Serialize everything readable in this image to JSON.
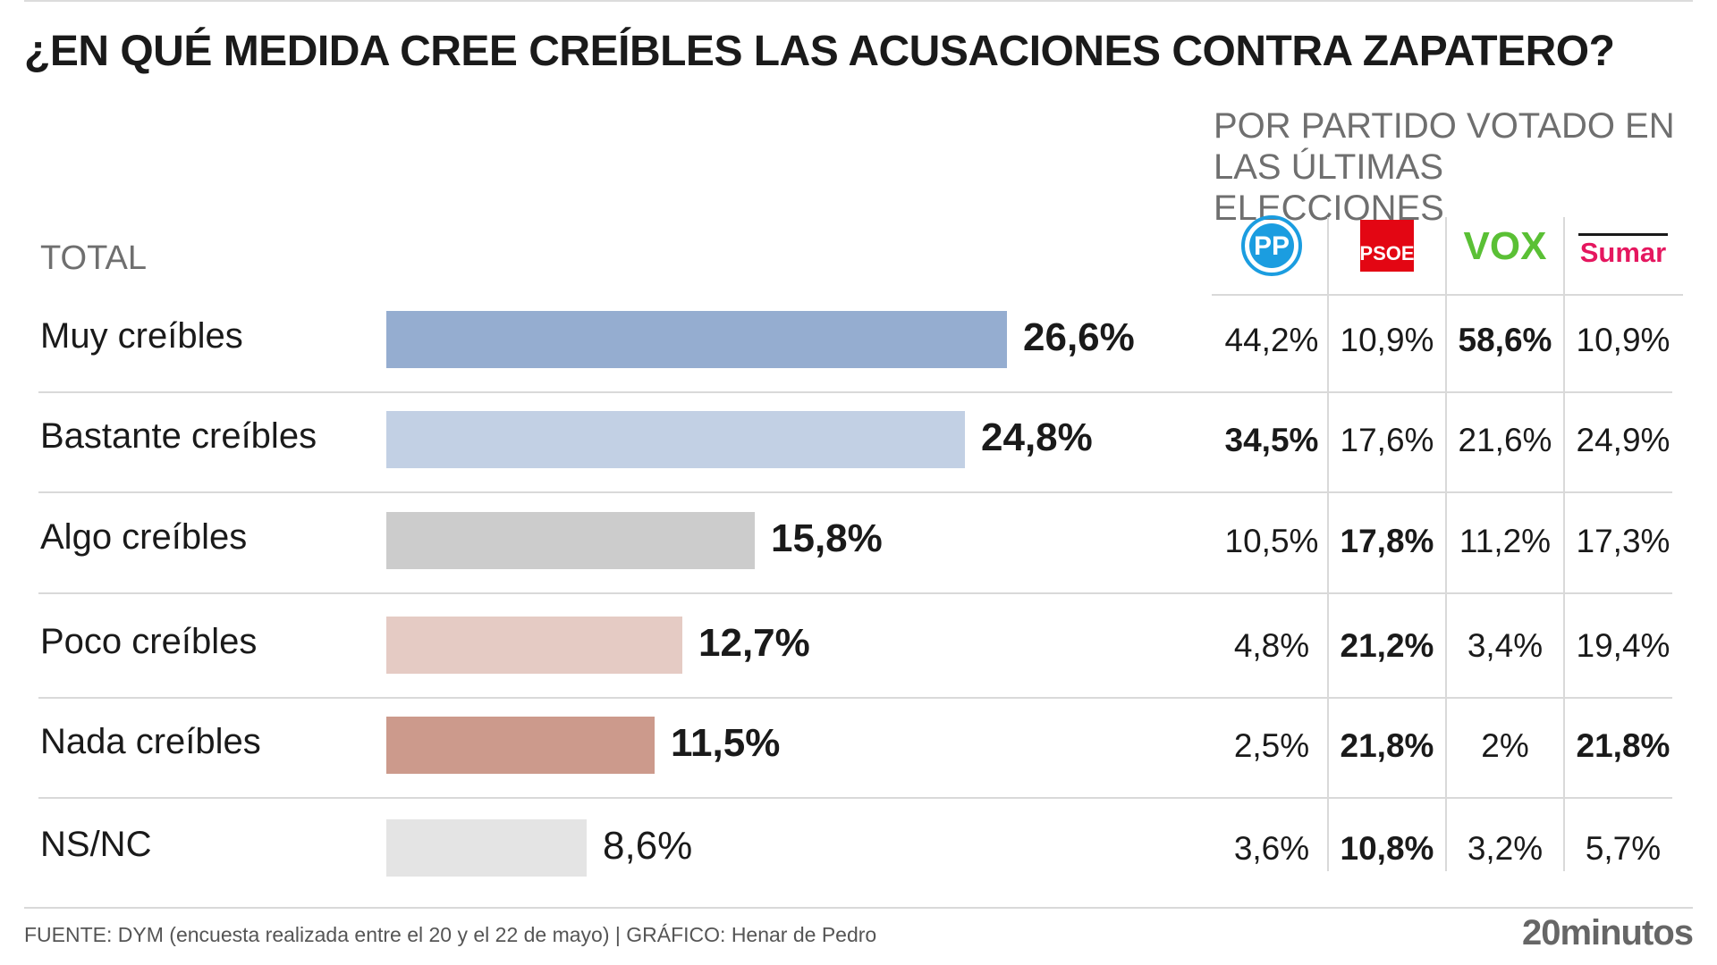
{
  "title": "¿EN QUÉ MEDIDA CREE CREÍBLES LAS ACUSACIONES CONTRA ZAPATERO?",
  "subtitle_line1": "POR PARTIDO VOTADO EN",
  "subtitle_line2": "LAS ÚLTIMAS ELECCIONES",
  "total_label": "TOTAL",
  "footer": "FUENTE: DYM (encuesta realizada entre el 20 y el 22 de mayo)  |  GRÁFICO: Henar de Pedro",
  "brand": "20minutos",
  "colors": {
    "muy": "#95add0",
    "bastante": "#c2d0e4",
    "algo": "#cccccc",
    "poco": "#e5cbc4",
    "nada": "#cc9a8c",
    "nsnc": "#e4e4e4",
    "pp": "#1b9de0",
    "psoe": "#e30613",
    "vox": "#5ac035",
    "sumar": "#e5175f"
  },
  "chart_data": {
    "type": "bar",
    "orientation": "horizontal",
    "title": "¿EN QUÉ MEDIDA CREE CREÍBLES LAS ACUSACIONES CONTRA ZAPATERO?",
    "categories": [
      "Muy creíbles",
      "Bastante creíbles",
      "Algo creíbles",
      "Poco creíbles",
      "Nada creíbles",
      "NS/NC"
    ],
    "values": [
      26.6,
      24.8,
      15.8,
      12.7,
      11.5,
      8.6
    ],
    "value_labels": [
      "26,6%",
      "24,8%",
      "15,8%",
      "12,7%",
      "11,5%",
      "8,6%"
    ],
    "xlim": [
      0,
      26.6
    ],
    "grid": false,
    "table": {
      "columns": [
        "PP",
        "PSOE",
        "VOX",
        "Sumar"
      ],
      "rows": [
        [
          "44,2%",
          "10,9%",
          "58,6%",
          "10,9%"
        ],
        [
          "34,5%",
          "17,6%",
          "21,6%",
          "24,9%"
        ],
        [
          "10,5%",
          "17,8%",
          "11,2%",
          "17,3%"
        ],
        [
          "4,8%",
          "21,2%",
          "3,4%",
          "19,4%"
        ],
        [
          "2,5%",
          "21,8%",
          "2%",
          "21,8%"
        ],
        [
          "3,6%",
          "10,8%",
          "3,2%",
          "5,7%"
        ]
      ],
      "highlight": [
        [
          false,
          false,
          true,
          false
        ],
        [
          true,
          false,
          false,
          false
        ],
        [
          false,
          true,
          false,
          false
        ],
        [
          false,
          true,
          false,
          false
        ],
        [
          false,
          true,
          false,
          true
        ],
        [
          false,
          true,
          false,
          false
        ]
      ]
    }
  }
}
